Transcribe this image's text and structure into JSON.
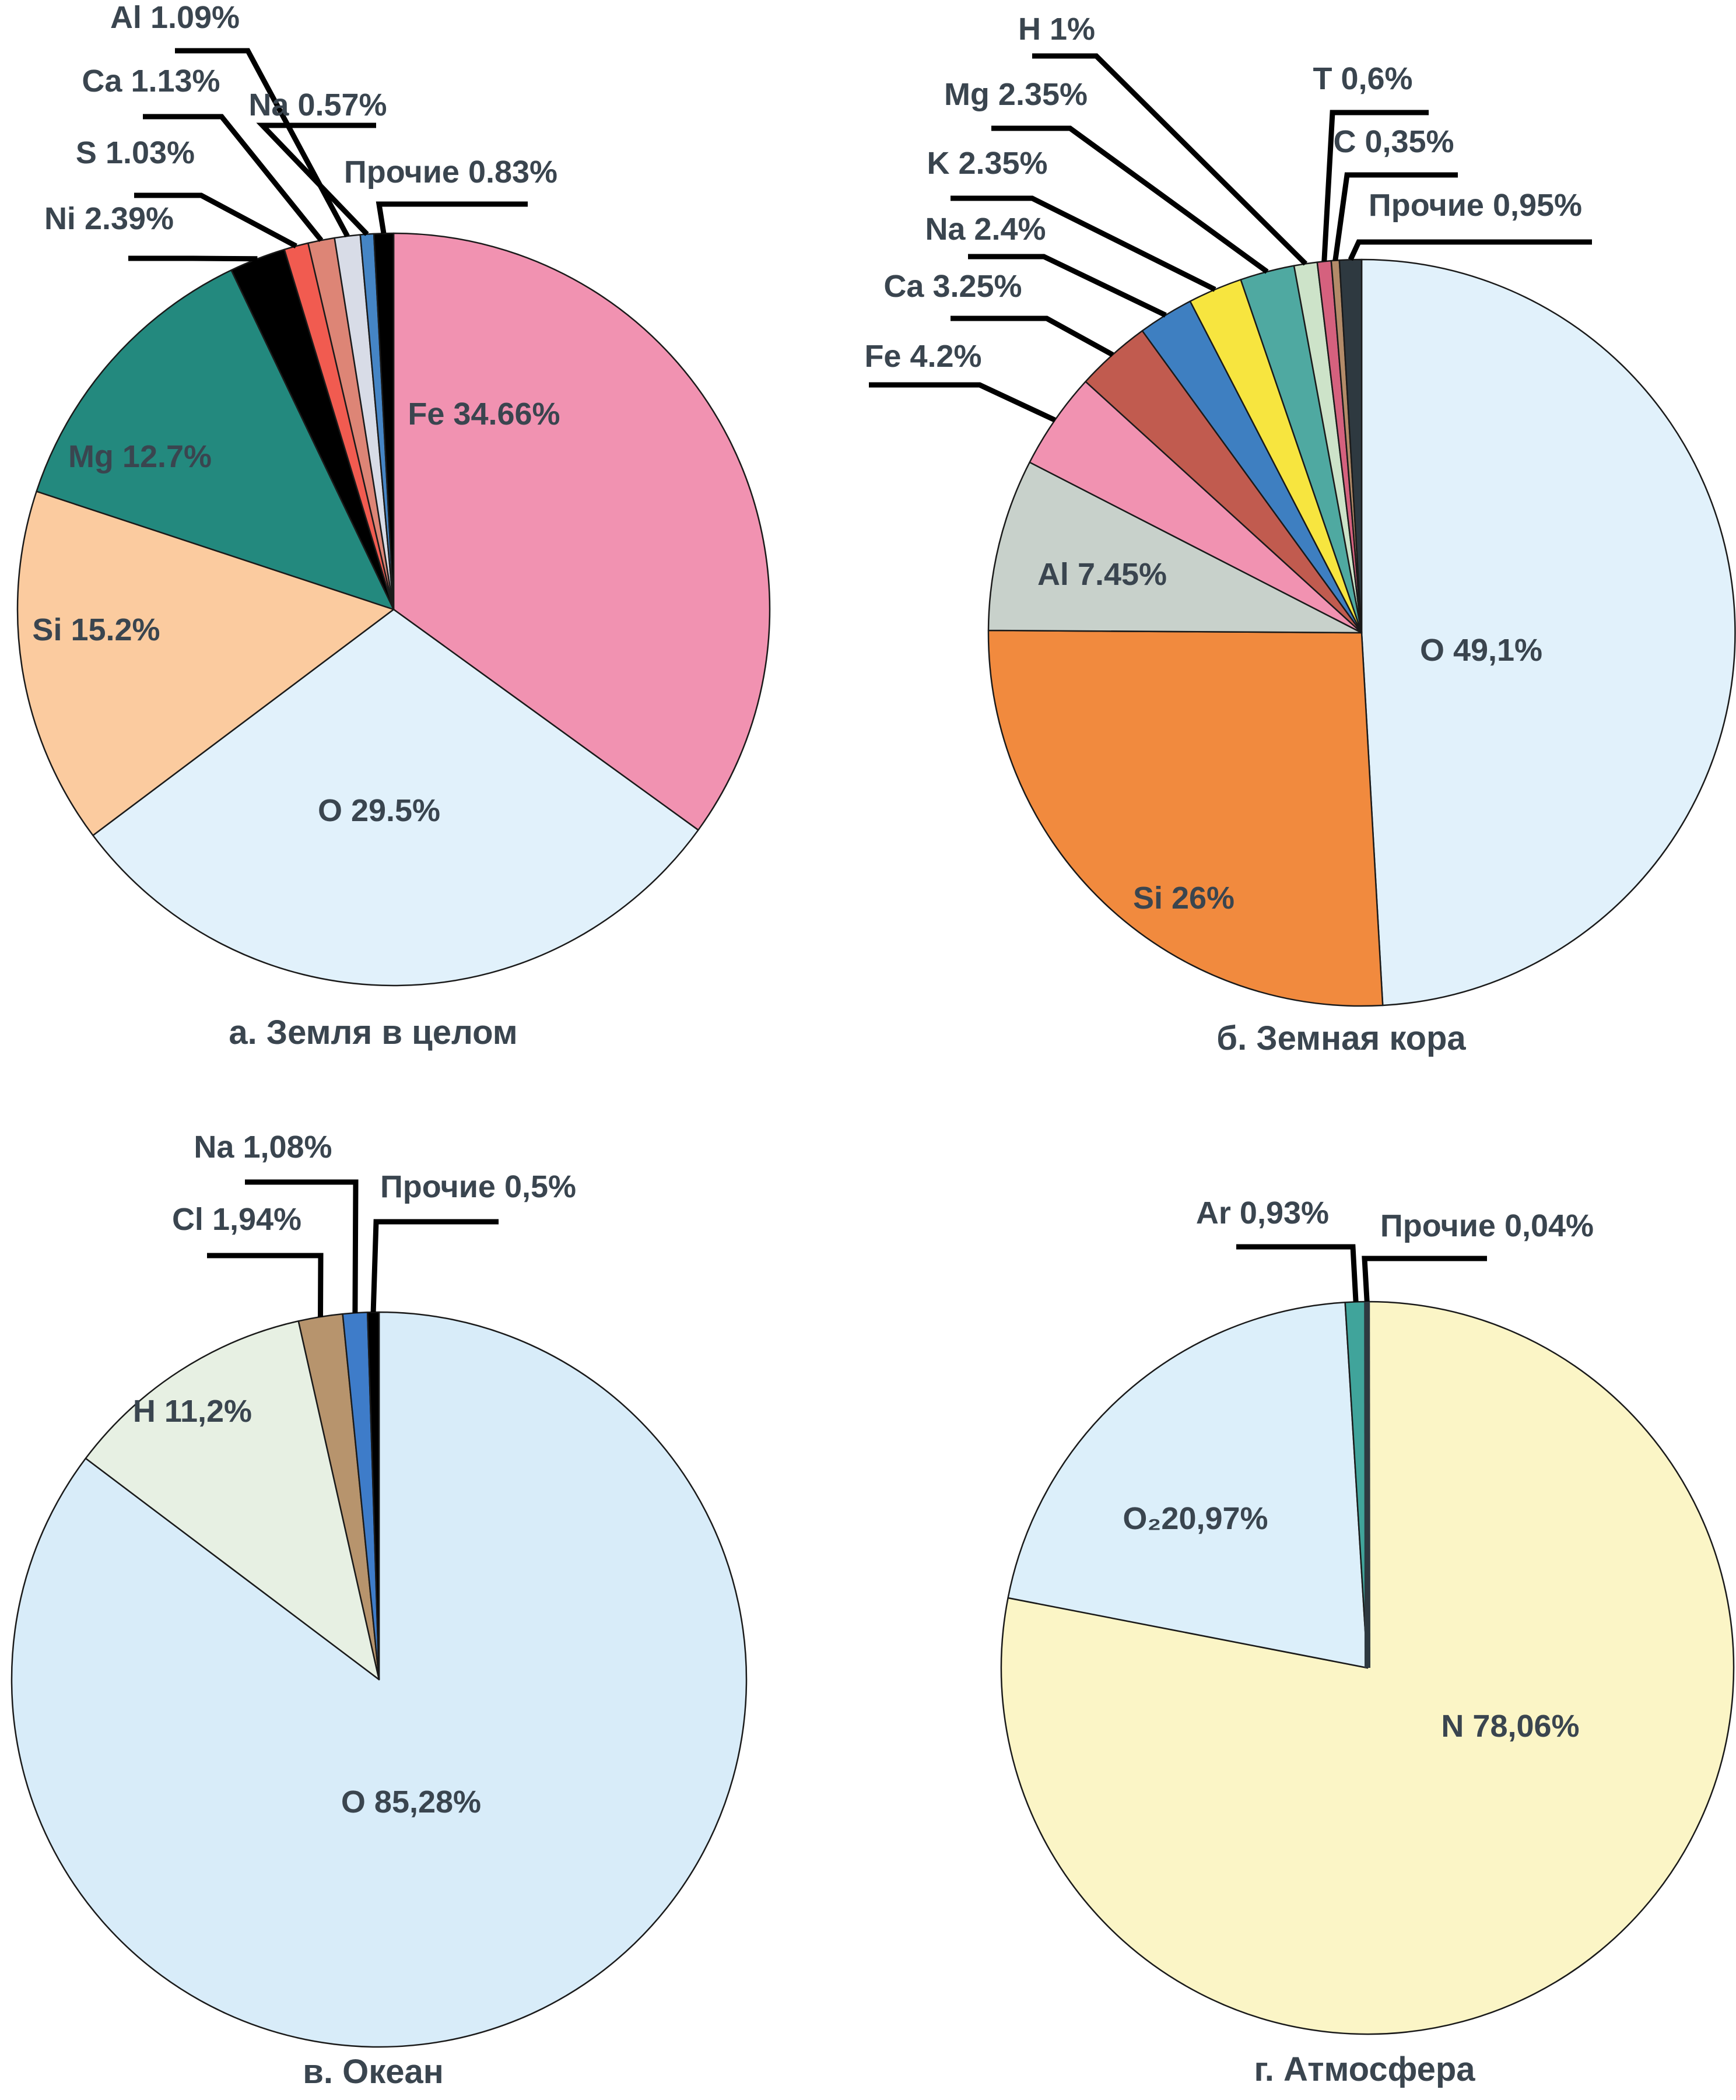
{
  "style": {
    "background": "#FFFFFF",
    "text_color": "#3A454F",
    "slice_outline_color": "#1A1A1A",
    "leader_line_color": "#000000"
  },
  "chart_data": [
    {
      "id": "earth-total",
      "type": "pie",
      "title": "а. Земля в целом",
      "unit": "%",
      "legend_position": "none",
      "slices": [
        {
          "id": "fe",
          "label": "Fe",
          "value": 34.66,
          "display": "Fe 34.66%",
          "color": "#F192B1",
          "label_placement": "inside"
        },
        {
          "id": "o",
          "label": "O",
          "value": 29.5,
          "display": "O 29.5%",
          "color": "#E1F1FB",
          "label_placement": "inside"
        },
        {
          "id": "si",
          "label": "Si",
          "value": 15.2,
          "display": "Si 15.2%",
          "color": "#FBCB9F",
          "label_placement": "inside"
        },
        {
          "id": "mg",
          "label": "Mg",
          "value": 12.7,
          "display": "Mg 12.7%",
          "color": "#23897E",
          "label_placement": "inside"
        },
        {
          "id": "ni",
          "label": "Ni",
          "value": 2.39,
          "display": "Ni 2.39%",
          "color": "#000000",
          "label_placement": "outside"
        },
        {
          "id": "s",
          "label": "S",
          "value": 1.03,
          "display": "S 1.03%",
          "color": "#F15B50",
          "label_placement": "outside"
        },
        {
          "id": "ca",
          "label": "Ca",
          "value": 1.13,
          "display": "Ca 1.13%",
          "color": "#DD8576",
          "label_placement": "outside"
        },
        {
          "id": "al",
          "label": "Al",
          "value": 1.09,
          "display": "Al 1.09%",
          "color": "#D8DCE7",
          "label_placement": "outside"
        },
        {
          "id": "na",
          "label": "Na",
          "value": 0.57,
          "display": "Na 0.57%",
          "color": "#4585C5",
          "label_placement": "outside"
        },
        {
          "id": "other",
          "label": "Прочие",
          "value": 0.83,
          "display": "Прочие 0.83%",
          "color": "#000000",
          "label_placement": "outside"
        }
      ]
    },
    {
      "id": "earth-crust",
      "type": "pie",
      "title": "б. Земная кора",
      "unit": "%",
      "legend_position": "none",
      "slices": [
        {
          "id": "o",
          "label": "O",
          "value": 49.1,
          "display": "O 49,1%",
          "color": "#E1F1FB",
          "label_placement": "inside"
        },
        {
          "id": "si",
          "label": "Si",
          "value": 26,
          "display": "Si 26%",
          "color": "#F18A3E",
          "label_placement": "inside"
        },
        {
          "id": "al",
          "label": "Al",
          "value": 7.45,
          "display": "Al 7.45%",
          "color": "#C8D1CB",
          "label_placement": "inside"
        },
        {
          "id": "fe",
          "label": "Fe",
          "value": 4.2,
          "display": "Fe 4.2%",
          "color": "#F192B1",
          "label_placement": "outside"
        },
        {
          "id": "ca",
          "label": "Ca",
          "value": 3.25,
          "display": "Ca 3.25%",
          "color": "#C15B4F",
          "label_placement": "outside"
        },
        {
          "id": "na",
          "label": "Na",
          "value": 2.4,
          "display": "Na 2.4%",
          "color": "#3E7FC1",
          "label_placement": "outside"
        },
        {
          "id": "k",
          "label": "K",
          "value": 2.35,
          "display": "K 2.35%",
          "color": "#F7E53F",
          "label_placement": "outside"
        },
        {
          "id": "mg",
          "label": "Mg",
          "value": 2.35,
          "display": "Mg 2.35%",
          "color": "#4FA9A1",
          "label_placement": "outside"
        },
        {
          "id": "h",
          "label": "H",
          "value": 1,
          "display": "H 1%",
          "color": "#CDE3C9",
          "label_placement": "outside"
        },
        {
          "id": "t",
          "label": "T",
          "value": 0.6,
          "display": "T 0,6%",
          "color": "#D5617E",
          "label_placement": "outside"
        },
        {
          "id": "c",
          "label": "C",
          "value": 0.35,
          "display": "C 0,35%",
          "color": "#B38B69",
          "label_placement": "outside"
        },
        {
          "id": "other",
          "label": "Прочие",
          "value": 0.95,
          "display": "Прочие 0,95%",
          "color": "#2E3940",
          "label_placement": "outside"
        }
      ]
    },
    {
      "id": "ocean",
      "type": "pie",
      "title": "в. Океан",
      "unit": "%",
      "legend_position": "none",
      "slices": [
        {
          "id": "o",
          "label": "O",
          "value": 85.28,
          "display": "O 85,28%",
          "color": "#D8ECF9",
          "label_placement": "inside"
        },
        {
          "id": "h",
          "label": "H",
          "value": 11.2,
          "display": "H 11,2%",
          "color": "#E7F0E3",
          "label_placement": "inside"
        },
        {
          "id": "cl",
          "label": "Cl",
          "value": 1.94,
          "display": "Cl 1,94%",
          "color": "#B7946D",
          "label_placement": "outside"
        },
        {
          "id": "na",
          "label": "Na",
          "value": 1.08,
          "display": "Na 1,08%",
          "color": "#3E7CC9",
          "label_placement": "outside"
        },
        {
          "id": "other",
          "label": "Прочие",
          "value": 0.5,
          "display": "Прочие 0,5%",
          "color": "#000000",
          "label_placement": "outside"
        }
      ]
    },
    {
      "id": "atmosphere",
      "type": "pie",
      "title": "г. Атмосфера",
      "unit": "%",
      "legend_position": "none",
      "slices": [
        {
          "id": "n",
          "label": "N",
          "value": 78.06,
          "display": "N 78,06%",
          "color": "#FBF5C6",
          "label_placement": "inside"
        },
        {
          "id": "o2",
          "label": "O₂",
          "value": 20.97,
          "display": "O₂20,97%",
          "color": "#DCEFFA",
          "label_placement": "inside"
        },
        {
          "id": "ar",
          "label": "Ar",
          "value": 0.93,
          "display": "Ar 0,93%",
          "color": "#40A49B",
          "label_placement": "outside"
        },
        {
          "id": "other",
          "label": "Прочие",
          "value": 0.04,
          "display": "Прочие 0,04%",
          "color": "#2E3940",
          "label_placement": "outside"
        }
      ]
    }
  ]
}
